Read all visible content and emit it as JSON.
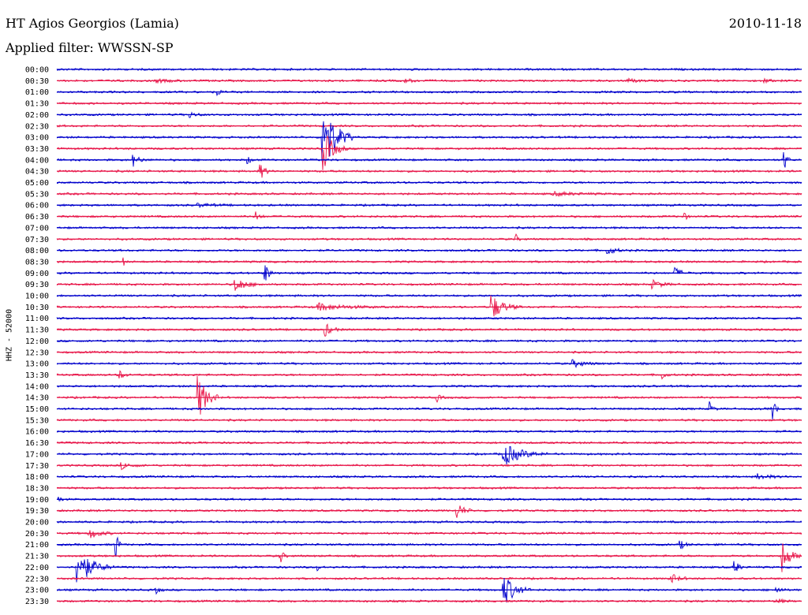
{
  "header": {
    "station": "HT Agios Georgios (Lamia)",
    "date": "2010-11-18",
    "filter": "Applied filter: WWSSN-SP",
    "channel": "HHZ - 52000"
  },
  "colors": {
    "odd_row": "#0000cc",
    "even_row": "#e8174a"
  },
  "chart_data": {
    "type": "line",
    "title": "HT Agios Georgios (Lamia)",
    "ylabel": "HHZ - 52000",
    "row_labels": [
      "00:00",
      "00:30",
      "01:00",
      "01:30",
      "02:00",
      "02:30",
      "03:00",
      "03:30",
      "04:00",
      "04:30",
      "05:00",
      "05:30",
      "06:00",
      "06:30",
      "07:00",
      "07:30",
      "08:00",
      "08:30",
      "09:00",
      "09:30",
      "10:00",
      "10:30",
      "11:00",
      "11:30",
      "12:00",
      "12:30",
      "13:00",
      "13:30",
      "14:00",
      "14:30",
      "15:00",
      "15:30",
      "16:00",
      "16:30",
      "17:00",
      "17:30",
      "18:00",
      "18:30",
      "19:00",
      "19:30",
      "20:00",
      "20:30",
      "21:00",
      "21:30",
      "22:00",
      "22:30",
      "23:00",
      "23:30"
    ],
    "row_colors": [
      "blue",
      "red"
    ],
    "events": [
      {
        "row": 1,
        "minute": 4,
        "amplitude": 0.15,
        "duration": 1.5
      },
      {
        "row": 1,
        "minute": 14,
        "amplitude": 0.15,
        "duration": 1.0
      },
      {
        "row": 1,
        "minute": 23,
        "amplitude": 0.15,
        "duration": 1.0
      },
      {
        "row": 1,
        "minute": 28.5,
        "amplitude": 0.2,
        "duration": 0.5
      },
      {
        "row": 2,
        "minute": 6.5,
        "amplitude": 0.3,
        "duration": 0.3
      },
      {
        "row": 4,
        "minute": 5.3,
        "amplitude": 0.3,
        "duration": 0.7
      },
      {
        "row": 6,
        "minute": 10.7,
        "amplitude": 4.0,
        "duration": 1.2
      },
      {
        "row": 7,
        "minute": 10.7,
        "amplitude": 2.0,
        "duration": 1.0
      },
      {
        "row": 8,
        "minute": 3.1,
        "amplitude": 0.5,
        "duration": 0.6
      },
      {
        "row": 8,
        "minute": 7.7,
        "amplitude": 0.3,
        "duration": 0.4
      },
      {
        "row": 8,
        "minute": 29.3,
        "amplitude": 0.9,
        "duration": 0.3
      },
      {
        "row": 9,
        "minute": 8.2,
        "amplitude": 0.7,
        "duration": 0.5
      },
      {
        "row": 11,
        "minute": 20,
        "amplitude": 0.15,
        "duration": 2.5
      },
      {
        "row": 12,
        "minute": 5.7,
        "amplitude": 0.15,
        "duration": 1.5
      },
      {
        "row": 13,
        "minute": 8.0,
        "amplitude": 0.5,
        "duration": 0.4
      },
      {
        "row": 13,
        "minute": 25.3,
        "amplitude": 0.4,
        "duration": 0.2
      },
      {
        "row": 15,
        "minute": 18.5,
        "amplitude": 0.4,
        "duration": 0.2
      },
      {
        "row": 16,
        "minute": 22.2,
        "amplitude": 0.35,
        "duration": 0.8
      },
      {
        "row": 17,
        "minute": 2.7,
        "amplitude": 0.3,
        "duration": 0.1
      },
      {
        "row": 18,
        "minute": 8.4,
        "amplitude": 1.0,
        "duration": 0.4
      },
      {
        "row": 18,
        "minute": 24.9,
        "amplitude": 0.45,
        "duration": 0.7
      },
      {
        "row": 19,
        "minute": 7.2,
        "amplitude": 0.6,
        "duration": 1.2
      },
      {
        "row": 19,
        "minute": 24,
        "amplitude": 0.35,
        "duration": 1.0
      },
      {
        "row": 21,
        "minute": 10.5,
        "amplitude": 0.3,
        "duration": 3.0
      },
      {
        "row": 21,
        "minute": 17.5,
        "amplitude": 1.2,
        "duration": 1.2
      },
      {
        "row": 23,
        "minute": 10.8,
        "amplitude": 0.6,
        "duration": 0.7
      },
      {
        "row": 26,
        "minute": 20.8,
        "amplitude": 0.3,
        "duration": 1.2
      },
      {
        "row": 27,
        "minute": 2.5,
        "amplitude": 0.45,
        "duration": 0.5
      },
      {
        "row": 27,
        "minute": 24.3,
        "amplitude": 0.6,
        "duration": 0.4
      },
      {
        "row": 29,
        "minute": 5.7,
        "amplitude": 2.0,
        "duration": 0.9
      },
      {
        "row": 29,
        "minute": 15.3,
        "amplitude": 0.35,
        "duration": 0.4
      },
      {
        "row": 30,
        "minute": 26.3,
        "amplitude": 0.6,
        "duration": 0.3
      },
      {
        "row": 30,
        "minute": 28.8,
        "amplitude": 1.2,
        "duration": 0.3
      },
      {
        "row": 34,
        "minute": 18,
        "amplitude": 1.0,
        "duration": 1.8
      },
      {
        "row": 35,
        "minute": 2.6,
        "amplitude": 0.3,
        "duration": 1.0
      },
      {
        "row": 36,
        "minute": 28.2,
        "amplitude": 0.25,
        "duration": 1.2
      },
      {
        "row": 38,
        "minute": 0.1,
        "amplitude": 0.3,
        "duration": 0.2
      },
      {
        "row": 39,
        "minute": 16.1,
        "amplitude": 0.8,
        "duration": 0.7
      },
      {
        "row": 41,
        "minute": 1.3,
        "amplitude": 0.5,
        "duration": 1.0
      },
      {
        "row": 42,
        "minute": 2.4,
        "amplitude": 1.5,
        "duration": 0.2
      },
      {
        "row": 42,
        "minute": 25.1,
        "amplitude": 0.4,
        "duration": 0.5
      },
      {
        "row": 43,
        "minute": 9.0,
        "amplitude": 0.7,
        "duration": 0.3
      },
      {
        "row": 43,
        "minute": 29.2,
        "amplitude": 1.6,
        "duration": 0.8
      },
      {
        "row": 44,
        "minute": 0.8,
        "amplitude": 1.8,
        "duration": 1.5
      },
      {
        "row": 44,
        "minute": 10.5,
        "amplitude": 0.3,
        "duration": 0.4
      },
      {
        "row": 44,
        "minute": 27.3,
        "amplitude": 0.7,
        "duration": 0.4
      },
      {
        "row": 45,
        "minute": 24.7,
        "amplitude": 0.5,
        "duration": 0.8
      },
      {
        "row": 46,
        "minute": 18,
        "amplitude": 1.5,
        "duration": 1.1
      },
      {
        "row": 46,
        "minute": 4.0,
        "amplitude": 0.3,
        "duration": 0.4
      },
      {
        "row": 46,
        "minute": 29.0,
        "amplitude": 0.4,
        "duration": 0.4
      },
      {
        "row": 47,
        "minute": 29.0,
        "amplitude": 0.25,
        "duration": 0.6
      }
    ]
  }
}
